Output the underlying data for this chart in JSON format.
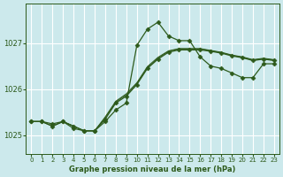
{
  "background_color": "#cce9ec",
  "grid_color": "#ffffff",
  "line_color": "#2d5a1b",
  "title": "Graphe pression niveau de la mer (hPa)",
  "xlim": [
    -0.5,
    23.5
  ],
  "ylim": [
    1024.6,
    1027.85
  ],
  "yticks": [
    1025,
    1026,
    1027
  ],
  "xticks": [
    0,
    1,
    2,
    3,
    4,
    5,
    6,
    7,
    8,
    9,
    10,
    11,
    12,
    13,
    14,
    15,
    16,
    17,
    18,
    19,
    20,
    21,
    22,
    23
  ],
  "series": [
    {
      "x": [
        0,
        1,
        2,
        3,
        4,
        5,
        6,
        7,
        8,
        9,
        10,
        11,
        12,
        13,
        14,
        15,
        16,
        17,
        18,
        19,
        20,
        21,
        22,
        23
      ],
      "y": [
        1025.3,
        1025.3,
        1025.25,
        1025.3,
        1025.15,
        1025.1,
        1025.1,
        1025.3,
        1025.55,
        1025.7,
        1026.95,
        1027.3,
        1027.45,
        1027.15,
        1027.05,
        1027.05,
        1026.7,
        1026.5,
        1026.45,
        1026.35,
        1026.25,
        1026.25,
        1026.55,
        1026.55
      ],
      "marker": "D",
      "markersize": 2.5,
      "lw": 0.9
    },
    {
      "x": [
        0,
        1,
        2,
        3,
        4,
        5,
        6,
        7,
        8,
        9,
        10,
        11,
        12,
        13,
        14,
        15,
        16,
        17,
        18,
        19,
        20,
        21,
        22,
        23
      ],
      "y": [
        1025.3,
        1025.3,
        1025.2,
        1025.3,
        1025.2,
        1025.1,
        1025.1,
        1025.35,
        1025.7,
        1025.85,
        1026.1,
        1026.45,
        1026.65,
        1026.8,
        1026.85,
        1026.85,
        1026.85,
        1026.82,
        1026.78,
        1026.72,
        1026.68,
        1026.62,
        1026.65,
        1026.62
      ],
      "marker": "D",
      "markersize": 2.5,
      "lw": 0.9
    },
    {
      "x": [
        0,
        1,
        2,
        3,
        4,
        5,
        6,
        7,
        8,
        9,
        10,
        11,
        12,
        13,
        14,
        15,
        16,
        17,
        18,
        19,
        20,
        21,
        22,
        23
      ],
      "y": [
        1025.3,
        1025.3,
        1025.2,
        1025.3,
        1025.2,
        1025.1,
        1025.1,
        1025.38,
        1025.72,
        1025.88,
        1026.12,
        1026.47,
        1026.67,
        1026.82,
        1026.87,
        1026.87,
        1026.87,
        1026.83,
        1026.79,
        1026.73,
        1026.69,
        1026.63,
        1026.66,
        1026.63
      ],
      "marker": null,
      "markersize": 0,
      "lw": 0.7
    },
    {
      "x": [
        0,
        1,
        2,
        3,
        4,
        5,
        6,
        7,
        8,
        9,
        10,
        11,
        12,
        13,
        14,
        15,
        16,
        17,
        18,
        19,
        20,
        21,
        22,
        23
      ],
      "y": [
        1025.3,
        1025.3,
        1025.2,
        1025.3,
        1025.2,
        1025.1,
        1025.1,
        1025.4,
        1025.74,
        1025.9,
        1026.14,
        1026.49,
        1026.69,
        1026.83,
        1026.88,
        1026.88,
        1026.88,
        1026.84,
        1026.8,
        1026.74,
        1026.7,
        1026.64,
        1026.67,
        1026.64
      ],
      "marker": null,
      "markersize": 0,
      "lw": 0.7
    }
  ]
}
